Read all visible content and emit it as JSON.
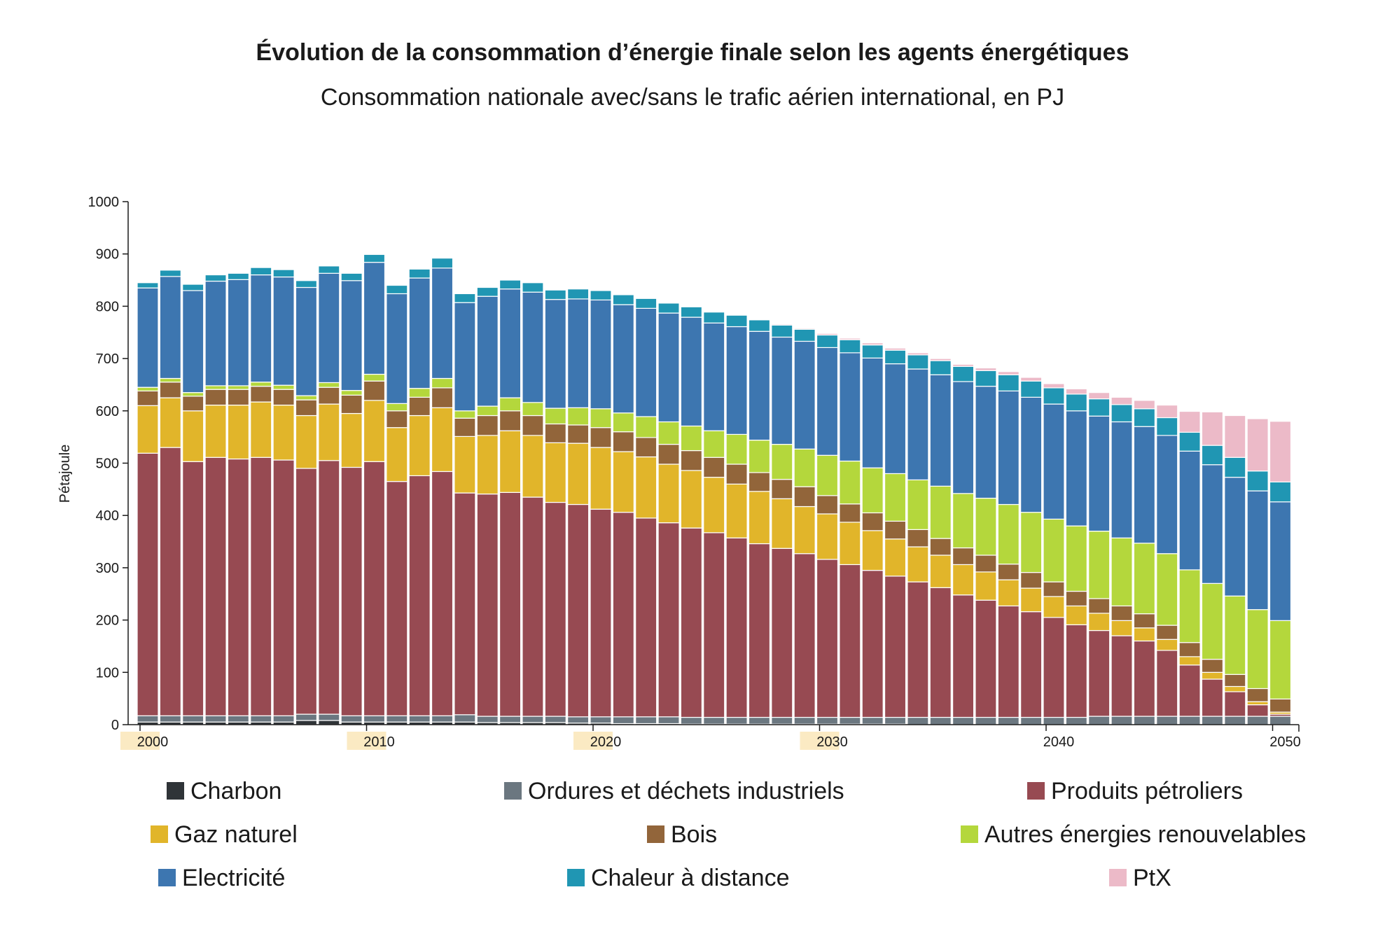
{
  "chart_data": {
    "type": "bar",
    "stacked": true,
    "title": "Évolution de la consommation d’énergie finale selon les agents énergétiques",
    "subtitle": "Consommation nationale avec/sans le trafic aérien international, en PJ",
    "ylabel": "Pétajoule",
    "ylim": [
      0,
      1000
    ],
    "yticks": [
      0,
      100,
      200,
      300,
      400,
      500,
      600,
      700,
      800,
      900,
      1000
    ],
    "xticks": [
      2000,
      2010,
      2020,
      2030,
      2040,
      2050
    ],
    "highlighted_xticks": [
      2000,
      2010,
      2020,
      2030
    ],
    "highlight_color": "#fbeac3",
    "grid": false,
    "legend_position": "bottom",
    "years": [
      2000,
      2001,
      2002,
      2003,
      2004,
      2005,
      2006,
      2007,
      2008,
      2009,
      2010,
      2011,
      2012,
      2013,
      2014,
      2015,
      2016,
      2017,
      2018,
      2019,
      2020,
      2021,
      2022,
      2023,
      2024,
      2025,
      2026,
      2027,
      2028,
      2029,
      2030,
      2031,
      2032,
      2033,
      2034,
      2035,
      2036,
      2037,
      2038,
      2039,
      2040,
      2041,
      2042,
      2043,
      2044,
      2045,
      2046,
      2047,
      2048,
      2049,
      2050
    ],
    "series": [
      {
        "name": "Charbon",
        "color": "#2f3438",
        "values": [
          5,
          5,
          5,
          5,
          5,
          5,
          5,
          8,
          8,
          5,
          5,
          5,
          5,
          5,
          5,
          4,
          4,
          4,
          4,
          3,
          3,
          2,
          2,
          2,
          1,
          1,
          1,
          1,
          1,
          1,
          1,
          1,
          1,
          1,
          0,
          0,
          0,
          0,
          0,
          0,
          0,
          0,
          0,
          0,
          0,
          0,
          0,
          0,
          0,
          0,
          0
        ]
      },
      {
        "name": "Ordures et déchets industriels",
        "color": "#6b7780",
        "values": [
          12,
          12,
          12,
          12,
          12,
          12,
          12,
          12,
          12,
          12,
          12,
          12,
          12,
          12,
          14,
          12,
          12,
          12,
          12,
          12,
          12,
          13,
          13,
          13,
          13,
          13,
          13,
          13,
          13,
          13,
          13,
          13,
          13,
          13,
          14,
          14,
          14,
          14,
          14,
          14,
          14,
          14,
          16,
          16,
          16,
          16,
          16,
          16,
          16,
          16,
          16
        ]
      },
      {
        "name": "Produits pétroliers",
        "color": "#974a52",
        "values": [
          502,
          513,
          486,
          494,
          491,
          494,
          489,
          470,
          485,
          475,
          486,
          448,
          459,
          467,
          424,
          425,
          428,
          419,
          409,
          406,
          397,
          391,
          380,
          371,
          362,
          353,
          343,
          332,
          323,
          313,
          302,
          292,
          281,
          270,
          259,
          248,
          234,
          224,
          213,
          202,
          191,
          177,
          164,
          154,
          144,
          126,
          98,
          71,
          47,
          22,
          4
        ]
      },
      {
        "name": "Gaz naturel",
        "color": "#e1b52a",
        "values": [
          91,
          95,
          97,
          100,
          103,
          106,
          105,
          101,
          108,
          103,
          117,
          103,
          115,
          122,
          108,
          112,
          118,
          118,
          114,
          117,
          118,
          116,
          117,
          112,
          110,
          106,
          103,
          100,
          95,
          90,
          87,
          81,
          76,
          71,
          67,
          62,
          58,
          54,
          50,
          45,
          40,
          36,
          33,
          29,
          25,
          21,
          16,
          13,
          10,
          6,
          4
        ]
      },
      {
        "name": "Bois",
        "color": "#92653a",
        "values": [
          28,
          30,
          28,
          30,
          30,
          30,
          30,
          30,
          32,
          35,
          37,
          32,
          35,
          38,
          35,
          38,
          38,
          38,
          36,
          35,
          38,
          38,
          37,
          38,
          38,
          38,
          38,
          36,
          37,
          38,
          35,
          35,
          34,
          34,
          33,
          32,
          32,
          32,
          30,
          30,
          28,
          28,
          28,
          28,
          27,
          27,
          27,
          25,
          23,
          25,
          25
        ]
      },
      {
        "name": "Autres énergies renouvelables",
        "color": "#b4d73c",
        "values": [
          7,
          7,
          7,
          7,
          7,
          8,
          8,
          8,
          9,
          9,
          13,
          14,
          17,
          18,
          14,
          18,
          25,
          25,
          30,
          33,
          36,
          36,
          40,
          43,
          47,
          51,
          57,
          62,
          67,
          72,
          77,
          82,
          86,
          91,
          95,
          100,
          104,
          109,
          114,
          115,
          120,
          125,
          129,
          130,
          135,
          137,
          139,
          145,
          150,
          151,
          150
        ]
      },
      {
        "name": "Electricité",
        "color": "#3d76b0",
        "values": [
          190,
          195,
          195,
          200,
          203,
          205,
          207,
          207,
          209,
          210,
          214,
          210,
          211,
          211,
          207,
          210,
          208,
          211,
          208,
          208,
          208,
          207,
          207,
          208,
          208,
          206,
          206,
          208,
          205,
          206,
          206,
          207,
          210,
          210,
          212,
          213,
          214,
          214,
          217,
          220,
          220,
          220,
          220,
          222,
          223,
          226,
          227,
          227,
          227,
          227,
          227
        ]
      },
      {
        "name": "Chaleur à distance",
        "color": "#2096b3",
        "values": [
          10,
          12,
          12,
          12,
          12,
          14,
          14,
          13,
          14,
          14,
          15,
          16,
          17,
          19,
          17,
          17,
          17,
          18,
          18,
          19,
          18,
          19,
          19,
          19,
          20,
          21,
          22,
          22,
          23,
          23,
          24,
          25,
          25,
          26,
          27,
          27,
          29,
          30,
          31,
          31,
          31,
          32,
          33,
          33,
          34,
          34,
          36,
          37,
          38,
          38,
          38
        ]
      },
      {
        "name": "PtX",
        "color": "#ecbac8",
        "values": [
          0,
          0,
          0,
          0,
          0,
          0,
          0,
          0,
          0,
          0,
          0,
          0,
          0,
          0,
          0,
          0,
          0,
          0,
          0,
          0,
          0,
          0,
          1,
          1,
          1,
          1,
          1,
          1,
          2,
          2,
          3,
          3,
          4,
          4,
          4,
          4,
          4,
          5,
          6,
          7,
          8,
          10,
          12,
          14,
          16,
          24,
          40,
          64,
          80,
          100,
          116
        ]
      }
    ]
  }
}
